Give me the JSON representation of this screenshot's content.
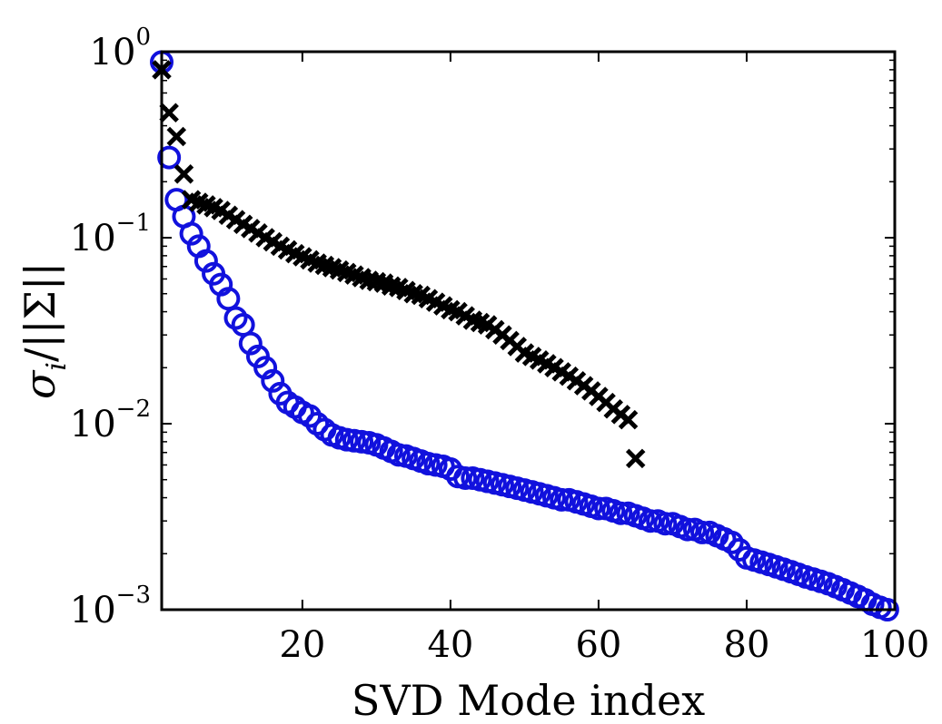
{
  "chart_data": {
    "type": "scatter",
    "title": "",
    "xlabel": "SVD Mode index",
    "ylabel": "σi/||Σ||",
    "ylabel_parts": {
      "sigma": "σ",
      "subscript": "i",
      "norm": "/||Σ||"
    },
    "xlim": [
      1,
      100
    ],
    "ylim": [
      0.001,
      1
    ],
    "yscale": "log",
    "xticks": [
      20,
      40,
      60,
      80,
      100
    ],
    "yticks": [
      {
        "value": 1,
        "base": "10",
        "exp": "0"
      },
      {
        "value": 0.1,
        "base": "10",
        "exp": "−1"
      },
      {
        "value": 0.01,
        "base": "10",
        "exp": "−2"
      },
      {
        "value": 0.001,
        "base": "10",
        "exp": "−3"
      }
    ],
    "colors": {
      "circles": "#1111dd",
      "crosses": "#000000",
      "axis": "#000000"
    },
    "series": [
      {
        "name": "circles",
        "marker": "circle",
        "x": [
          1,
          2,
          3,
          4,
          5,
          6,
          7,
          8,
          9,
          10,
          11,
          12,
          13,
          14,
          15,
          16,
          17,
          18,
          19,
          20,
          21,
          22,
          23,
          24,
          25,
          26,
          27,
          28,
          29,
          30,
          31,
          32,
          33,
          34,
          35,
          36,
          37,
          38,
          39,
          40,
          41,
          42,
          43,
          44,
          45,
          46,
          47,
          48,
          49,
          50,
          51,
          52,
          53,
          54,
          55,
          56,
          57,
          58,
          59,
          60,
          61,
          62,
          63,
          64,
          65,
          66,
          67,
          68,
          69,
          70,
          71,
          72,
          73,
          74,
          75,
          76,
          77,
          78,
          79,
          80,
          81,
          82,
          83,
          84,
          85,
          86,
          87,
          88,
          89,
          90,
          91,
          92,
          93,
          94,
          95,
          96,
          97,
          98,
          99
        ],
        "values": [
          0.88,
          0.27,
          0.16,
          0.13,
          0.105,
          0.09,
          0.075,
          0.064,
          0.056,
          0.047,
          0.037,
          0.034,
          0.027,
          0.023,
          0.02,
          0.017,
          0.0145,
          0.013,
          0.0123,
          0.0115,
          0.011,
          0.01,
          0.0093,
          0.0087,
          0.0084,
          0.0082,
          0.0081,
          0.008,
          0.0079,
          0.0077,
          0.0074,
          0.0071,
          0.0068,
          0.0067,
          0.0065,
          0.0063,
          0.0061,
          0.006,
          0.0059,
          0.0057,
          0.0052,
          0.0051,
          0.0051,
          0.005,
          0.0049,
          0.0048,
          0.0047,
          0.0046,
          0.0045,
          0.0044,
          0.0043,
          0.0042,
          0.0041,
          0.004,
          0.0039,
          0.0039,
          0.0038,
          0.0037,
          0.0036,
          0.0035,
          0.0035,
          0.0034,
          0.0033,
          0.0033,
          0.0032,
          0.0031,
          0.003,
          0.003,
          0.0029,
          0.0029,
          0.0028,
          0.0027,
          0.0027,
          0.0026,
          0.0026,
          0.0025,
          0.0024,
          0.0023,
          0.0021,
          0.0019,
          0.00185,
          0.0018,
          0.00175,
          0.0017,
          0.00165,
          0.0016,
          0.00155,
          0.0015,
          0.00146,
          0.00142,
          0.00138,
          0.00133,
          0.00128,
          0.00123,
          0.00118,
          0.00113,
          0.00107,
          0.00103,
          0.001
        ]
      },
      {
        "name": "crosses",
        "marker": "x",
        "x": [
          1,
          2,
          3,
          4,
          5,
          6,
          7,
          8,
          9,
          10,
          11,
          12,
          13,
          14,
          15,
          16,
          17,
          18,
          19,
          20,
          21,
          22,
          23,
          24,
          25,
          26,
          27,
          28,
          29,
          30,
          31,
          32,
          33,
          34,
          35,
          36,
          37,
          38,
          39,
          40,
          41,
          42,
          43,
          44,
          45,
          46,
          47,
          48,
          49,
          50,
          51,
          52,
          53,
          54,
          55,
          56,
          57,
          58,
          59,
          60,
          61,
          62,
          63,
          64,
          65
        ],
        "values": [
          0.8,
          0.47,
          0.35,
          0.22,
          0.16,
          0.155,
          0.15,
          0.145,
          0.14,
          0.132,
          0.125,
          0.118,
          0.112,
          0.106,
          0.1,
          0.095,
          0.09,
          0.086,
          0.082,
          0.079,
          0.076,
          0.073,
          0.071,
          0.069,
          0.067,
          0.065,
          0.063,
          0.061,
          0.059,
          0.058,
          0.057,
          0.055,
          0.054,
          0.052,
          0.05,
          0.049,
          0.047,
          0.045,
          0.043,
          0.041,
          0.04,
          0.038,
          0.036,
          0.035,
          0.034,
          0.032,
          0.03,
          0.028,
          0.026,
          0.024,
          0.023,
          0.022,
          0.021,
          0.02,
          0.019,
          0.018,
          0.017,
          0.016,
          0.015,
          0.014,
          0.013,
          0.012,
          0.0112,
          0.0105,
          0.0065
        ]
      }
    ]
  }
}
